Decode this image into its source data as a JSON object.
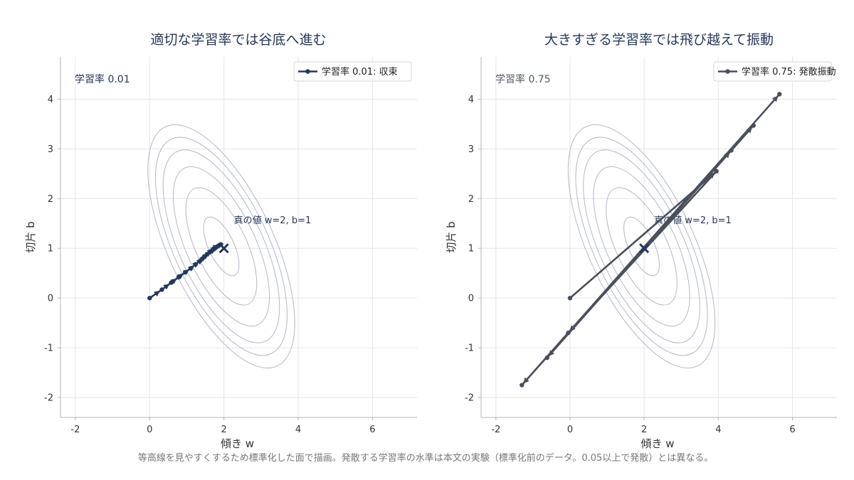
{
  "caption": "等高線を見やすくするため標準化した面で描画。発散する学習率の水準は本文の実験（標準化前のデータ。0.05以上で発散）とは異なる。",
  "chart_data": [
    {
      "type": "line",
      "title": "適切な学習率では谷底へ進む",
      "xlabel": "傾き w",
      "ylabel": "切片 b",
      "xlim": [
        -2.4,
        7.2
      ],
      "ylim": [
        -2.4,
        4.85
      ],
      "xticks": [
        -2,
        0,
        2,
        4,
        6
      ],
      "yticks": [
        -2,
        -1,
        0,
        1,
        2,
        3,
        4
      ],
      "grid": true,
      "legend_position": "top-right",
      "corner_label": "学習率 0.01",
      "corner_color": "#24385c",
      "target": {
        "x": 2,
        "y": 1
      },
      "target_label": "真の値 w=2, b=1",
      "contour_levels": [
        0.35,
        0.7,
        0.95,
        1.15,
        1.3,
        1.45
      ],
      "contour_color": "#b3b8cb",
      "series": [
        {
          "name": "学習率 0.01: 収束",
          "color": "#24385c",
          "points": [
            [
              0,
              0
            ],
            [
              0.33,
              0.17
            ],
            [
              0.58,
              0.31
            ],
            [
              0.78,
              0.42
            ],
            [
              0.96,
              0.52
            ],
            [
              1.11,
              0.6
            ],
            [
              1.24,
              0.68
            ],
            [
              1.36,
              0.75
            ],
            [
              1.46,
              0.82
            ],
            [
              1.55,
              0.88
            ],
            [
              1.63,
              0.93
            ],
            [
              1.7,
              0.97
            ],
            [
              1.76,
              1.0
            ],
            [
              1.81,
              1.03
            ],
            [
              1.85,
              1.05
            ],
            [
              1.89,
              1.07
            ],
            [
              1.92,
              1.08
            ]
          ]
        }
      ]
    },
    {
      "type": "line",
      "title": "大きすぎる学習率では飛び越えて振動",
      "xlabel": "傾き w",
      "ylabel": "切片 b",
      "xlim": [
        -2.4,
        7.2
      ],
      "ylim": [
        -2.4,
        4.85
      ],
      "xticks": [
        -2,
        0,
        2,
        4,
        6
      ],
      "yticks": [
        -2,
        -1,
        0,
        1,
        2,
        3,
        4
      ],
      "grid": true,
      "legend_position": "top-right",
      "corner_label": "学習率 0.75",
      "corner_color": "#555a66",
      "target": {
        "x": 2,
        "y": 1
      },
      "target_label": "真の値 w=2, b=1",
      "contour_levels": [
        0.35,
        0.7,
        0.95,
        1.15,
        1.3,
        1.45
      ],
      "contour_color": "#b3b8cb",
      "series": [
        {
          "name": "学習率 0.75: 発散振動",
          "color": "#4a4f5c",
          "points": [
            [
              0,
              0
            ],
            [
              3.95,
              2.55
            ],
            [
              -0.05,
              -0.7
            ],
            [
              4.35,
              2.97
            ],
            [
              -0.62,
              -1.2
            ],
            [
              4.95,
              3.47
            ],
            [
              -1.3,
              -1.75
            ],
            [
              5.65,
              4.1
            ]
          ]
        }
      ]
    }
  ]
}
